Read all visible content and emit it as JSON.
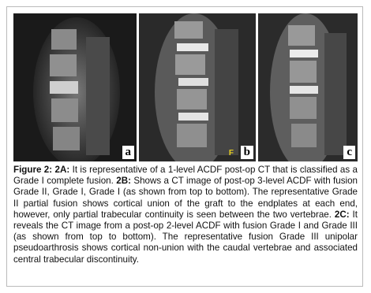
{
  "figure": {
    "panels": [
      {
        "label": "a"
      },
      {
        "label": "b",
        "marker": "F"
      },
      {
        "label": "c"
      }
    ],
    "caption": [
      {
        "label": "Figure 2:",
        "text": ""
      },
      {
        "label": "2A:",
        "text": "It is representative of a 1-level ACDF post-op CT that is classified as a Grade I complete fusion."
      },
      {
        "label": "2B:",
        "text": "Shows a CT image of post-op 3-level ACDF with fusion Grade II, Grade I, Grade I (as shown from top to bottom). The representative Grade II partial fusion shows cortical union of the graft to the endplates at each end, however, only partial trabecular continuity is seen between the two vertebrae."
      },
      {
        "label": "2C:",
        "text": "It reveals the CT image from a post-op 2-level ACDF with fusion Grade I and Grade III (as shown from top to bottom). The representative fusion Grade III unipolar pseudoarthrosis shows cortical non-union with the caudal vertebrae and associated central trabecular discontinuity."
      }
    ]
  }
}
